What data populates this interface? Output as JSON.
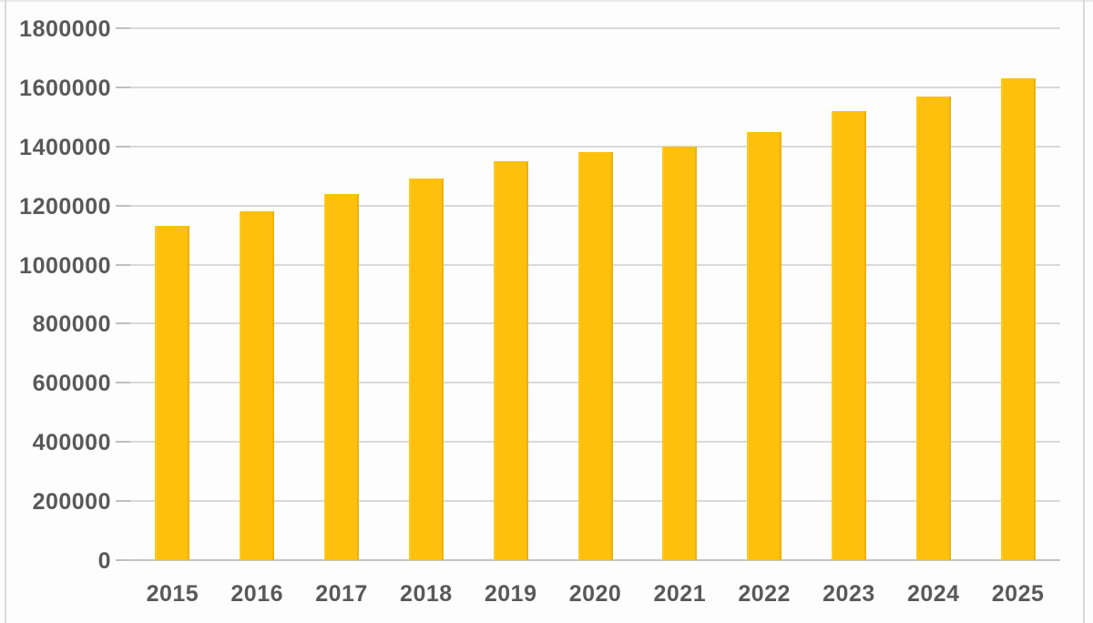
{
  "chart_data": {
    "type": "bar",
    "title": "",
    "xlabel": "",
    "ylabel": "",
    "categories": [
      "2015",
      "2016",
      "2017",
      "2018",
      "2019",
      "2020",
      "2021",
      "2022",
      "2023",
      "2024",
      "2025"
    ],
    "values": [
      1130000,
      1180000,
      1240000,
      1290000,
      1350000,
      1380000,
      1400000,
      1450000,
      1520000,
      1570000,
      1630000
    ],
    "ylim": [
      0,
      1800000
    ],
    "ytick_step": 200000,
    "ytick_labels": [
      "0",
      "200000",
      "400000",
      "600000",
      "800000",
      "1000000",
      "1200000",
      "1400000",
      "1600000",
      "1800000"
    ],
    "grid": true,
    "legend_position": "none",
    "bar_color": "#FCC00D",
    "gridline_color": "#d9d9d9",
    "axis_line_color": "#c3c3c3",
    "tick_color": "#bfbfbf",
    "label_color": "#595959",
    "background_color": "#fdfdfd"
  }
}
